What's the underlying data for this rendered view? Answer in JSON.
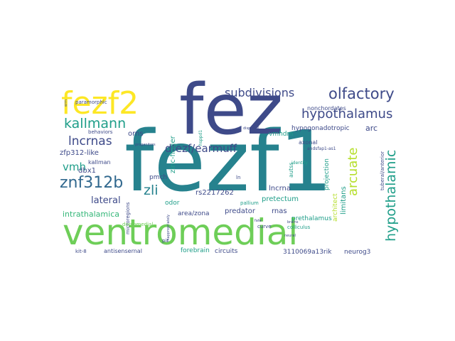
{
  "colors": {
    "purple": "#482878",
    "indigo": "#3e4a89",
    "blue": "#31688e",
    "teal": "#26828e",
    "green": "#1f9e89",
    "lime": "#6ece58",
    "lightgreen": "#35b779",
    "yellow": "#fde725",
    "olive": "#b5de2b"
  },
  "words": [
    {
      "text": "fezf1",
      "color": "teal"
    },
    {
      "text": "fez",
      "color": "indigo"
    },
    {
      "text": "ventromedial",
      "color": "lime"
    },
    {
      "text": "fezf2",
      "color": "yellow"
    },
    {
      "text": "olfactory",
      "color": "indigo"
    },
    {
      "text": "subdivisions",
      "color": "indigo"
    },
    {
      "text": "hypothalamus",
      "color": "indigo"
    },
    {
      "text": "hypothalamic",
      "color": "green"
    },
    {
      "text": "kallmann",
      "color": "green"
    },
    {
      "text": "lncrnas",
      "color": "indigo"
    },
    {
      "text": "arcuate",
      "color": "olive"
    },
    {
      "text": "znf312b",
      "color": "blue"
    },
    {
      "text": "dfezf/earmuff",
      "color": "indigo"
    },
    {
      "text": "zli",
      "color": "teal"
    },
    {
      "text": "vmh",
      "color": "green"
    },
    {
      "text": "lateral",
      "color": "indigo"
    },
    {
      "text": "intrathalamica",
      "color": "lightgreen"
    },
    {
      "text": "zfp312-like",
      "color": "indigo"
    },
    {
      "text": "paramorphic",
      "color": "indigo"
    },
    {
      "text": "orns",
      "color": "indigo"
    },
    {
      "text": "vmhdm",
      "color": "green"
    },
    {
      "text": "hypogonadotropic",
      "color": "indigo"
    },
    {
      "text": "arc",
      "color": "indigo"
    },
    {
      "text": "nonchordates",
      "color": "indigo"
    },
    {
      "text": "axonal",
      "color": "indigo"
    },
    {
      "text": "rs2217262",
      "color": "indigo"
    },
    {
      "text": "lncrna",
      "color": "indigo"
    },
    {
      "text": "pretectum",
      "color": "green"
    },
    {
      "text": "predator",
      "color": "indigo"
    },
    {
      "text": "rnas",
      "color": "indigo"
    },
    {
      "text": "area/zona",
      "color": "indigo"
    },
    {
      "text": "odor",
      "color": "green"
    },
    {
      "text": "pmch",
      "color": "indigo"
    },
    {
      "text": "zinc-finger",
      "color": "green"
    },
    {
      "text": "dbx1",
      "color": "indigo"
    },
    {
      "text": "kallman",
      "color": "indigo"
    },
    {
      "text": "behaviors",
      "color": "indigo"
    },
    {
      "text": "microregions",
      "color": "indigo"
    },
    {
      "text": "prethalamus",
      "color": "green"
    },
    {
      "text": "limitans",
      "color": "green"
    },
    {
      "text": "projection",
      "color": "green"
    },
    {
      "text": "architect",
      "color": "olive"
    },
    {
      "text": "tuberal/anterior",
      "color": "indigo"
    },
    {
      "text": "autss",
      "color": "green"
    },
    {
      "text": "antisensernal",
      "color": "indigo"
    },
    {
      "text": "forebrain",
      "color": "green"
    },
    {
      "text": "circuits",
      "color": "indigo"
    },
    {
      "text": "3110069a13rik",
      "color": "indigo"
    },
    {
      "text": "neurog3",
      "color": "indigo"
    },
    {
      "text": "pallium",
      "color": "green"
    },
    {
      "text": "curve",
      "color": "indigo"
    },
    {
      "text": "colliculus",
      "color": "green"
    },
    {
      "text": "kit-8",
      "color": "indigo"
    },
    {
      "text": "dorsomedial",
      "color": "lime"
    },
    {
      "text": "pit",
      "color": "indigo"
    },
    {
      "text": "identity",
      "color": "green"
    },
    {
      "text": "hsppd1",
      "color": "green"
    },
    {
      "text": "andsfap1-as1",
      "color": "indigo"
    },
    {
      "text": "fate",
      "color": "indigo"
    },
    {
      "text": "neural",
      "color": "indigo"
    },
    {
      "text": "brains",
      "color": "indigo"
    },
    {
      "text": "ln",
      "color": "indigo"
    },
    {
      "text": "inappropriately",
      "color": "indigo"
    },
    {
      "text": "progenitors",
      "color": "indigo"
    },
    {
      "text": "erm",
      "color": "indigo"
    },
    {
      "text": "dispersal",
      "color": "indigo"
    }
  ]
}
